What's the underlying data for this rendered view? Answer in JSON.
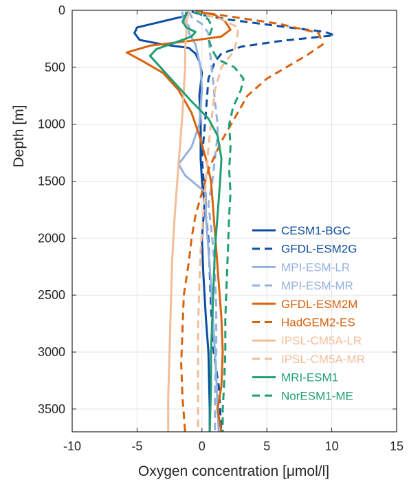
{
  "chart_data": {
    "type": "line",
    "xlabel": "Oxygen concentration [μmol/l]",
    "ylabel": "Depth [m]",
    "xlim": [
      -10,
      15
    ],
    "ylim": [
      0,
      3700
    ],
    "y_reversed": true,
    "grid": true,
    "legend_position": "bottom-right",
    "x_ticks": [
      "-10",
      "-5",
      "0",
      "5",
      "10",
      "15"
    ],
    "y_ticks": [
      "0",
      "500",
      "1000",
      "1500",
      "2000",
      "2500",
      "3000",
      "3500"
    ],
    "x_tick_values": [
      -10,
      -5,
      0,
      5,
      10,
      15
    ],
    "y_tick_values": [
      0,
      500,
      1000,
      1500,
      2000,
      2500,
      3000,
      3500
    ],
    "series": [
      {
        "name": "CESM1-BGC",
        "color": "#0c4da2",
        "dash": "solid",
        "points": [
          [
            -1.0,
            10
          ],
          [
            -1.3,
            50
          ],
          [
            -3.5,
            110
          ],
          [
            -5.0,
            150
          ],
          [
            -5.2,
            200
          ],
          [
            -4.8,
            260
          ],
          [
            -3.0,
            300
          ],
          [
            -1.0,
            330
          ],
          [
            -0.5,
            380
          ],
          [
            -0.2,
            450
          ],
          [
            0.0,
            550
          ],
          [
            -0.2,
            750
          ],
          [
            -0.1,
            1000
          ],
          [
            -0.1,
            1300
          ],
          [
            0.0,
            1500
          ],
          [
            0.2,
            1700
          ],
          [
            0.0,
            2000
          ],
          [
            0.1,
            2300
          ],
          [
            0.3,
            2700
          ],
          [
            0.5,
            3000
          ],
          [
            0.6,
            3500
          ],
          [
            0.6,
            3700
          ]
        ]
      },
      {
        "name": "GFDL-ESM2G",
        "color": "#0c4da2",
        "dash": "dash",
        "points": [
          [
            -0.8,
            10
          ],
          [
            0.0,
            40
          ],
          [
            2.0,
            80
          ],
          [
            6.0,
            140
          ],
          [
            9.5,
            190
          ],
          [
            10.2,
            220
          ],
          [
            6.0,
            270
          ],
          [
            3.0,
            320
          ],
          [
            1.5,
            380
          ],
          [
            1.0,
            450
          ],
          [
            0.5,
            600
          ],
          [
            0.3,
            900
          ],
          [
            0.0,
            1300
          ],
          [
            0.2,
            1600
          ],
          [
            0.3,
            1800
          ],
          [
            0.5,
            2000
          ],
          [
            0.6,
            2300
          ],
          [
            0.7,
            2600
          ],
          [
            0.9,
            3000
          ],
          [
            1.3,
            3300
          ],
          [
            1.4,
            3500
          ],
          [
            1.5,
            3700
          ]
        ]
      },
      {
        "name": "MPI-ESM-LR",
        "color": "#95b1de",
        "dash": "solid",
        "points": [
          [
            -1.5,
            10
          ],
          [
            -1.5,
            60
          ],
          [
            -1.3,
            100
          ],
          [
            -1.0,
            140
          ],
          [
            -1.0,
            200
          ],
          [
            -0.5,
            300
          ],
          [
            -0.3,
            400
          ],
          [
            -0.1,
            500
          ],
          [
            0.0,
            700
          ],
          [
            -0.2,
            1000
          ],
          [
            -0.8,
            1200
          ],
          [
            -1.8,
            1350
          ],
          [
            -1.3,
            1450
          ],
          [
            0.3,
            1600
          ],
          [
            0.3,
            1800
          ],
          [
            0.5,
            2100
          ],
          [
            0.7,
            2400
          ],
          [
            0.9,
            2800
          ],
          [
            1.1,
            3200
          ],
          [
            1.2,
            3500
          ],
          [
            1.3,
            3700
          ]
        ]
      },
      {
        "name": "MPI-ESM-MR",
        "color": "#95b1de",
        "dash": "dash",
        "points": [
          [
            -1.0,
            10
          ],
          [
            -0.8,
            60
          ],
          [
            0.0,
            120
          ],
          [
            0.5,
            200
          ],
          [
            0.6,
            350
          ],
          [
            0.8,
            550
          ],
          [
            1.0,
            800
          ],
          [
            1.2,
            1000
          ],
          [
            1.2,
            1100
          ],
          [
            1.0,
            1300
          ],
          [
            0.8,
            1500
          ],
          [
            0.5,
            1700
          ],
          [
            0.8,
            2000
          ],
          [
            1.0,
            2300
          ],
          [
            1.1,
            2600
          ],
          [
            1.1,
            3000
          ],
          [
            1.0,
            3300
          ],
          [
            1.0,
            3700
          ]
        ]
      },
      {
        "name": "GFDL-ESM2M",
        "color": "#d9620d",
        "dash": "solid",
        "points": [
          [
            -0.3,
            10
          ],
          [
            1.0,
            40
          ],
          [
            1.8,
            100
          ],
          [
            2.2,
            170
          ],
          [
            1.5,
            230
          ],
          [
            -1.0,
            270
          ],
          [
            -4.0,
            310
          ],
          [
            -5.8,
            370
          ],
          [
            -4.5,
            450
          ],
          [
            -3.0,
            550
          ],
          [
            -1.8,
            700
          ],
          [
            -0.8,
            900
          ],
          [
            -0.2,
            1100
          ],
          [
            0.3,
            1300
          ],
          [
            0.7,
            1500
          ],
          [
            0.9,
            1800
          ],
          [
            1.1,
            2100
          ],
          [
            1.3,
            2400
          ],
          [
            1.5,
            2700
          ],
          [
            1.6,
            3000
          ],
          [
            1.5,
            3300
          ],
          [
            1.2,
            3500
          ],
          [
            1.5,
            3700
          ]
        ]
      },
      {
        "name": "HadGEM2-ES",
        "color": "#d9620d",
        "dash": "dash",
        "points": [
          [
            -0.5,
            10
          ],
          [
            2.5,
            60
          ],
          [
            6.0,
            120
          ],
          [
            9.0,
            200
          ],
          [
            9.3,
            300
          ],
          [
            8.0,
            400
          ],
          [
            6.5,
            500
          ],
          [
            5.0,
            600
          ],
          [
            3.5,
            750
          ],
          [
            2.5,
            950
          ],
          [
            1.5,
            1150
          ],
          [
            0.5,
            1400
          ],
          [
            0.0,
            1600
          ],
          [
            -0.5,
            1800
          ],
          [
            -0.8,
            2000
          ],
          [
            -1.0,
            2200
          ],
          [
            -1.4,
            2500
          ],
          [
            -1.5,
            2800
          ],
          [
            -1.6,
            3100
          ],
          [
            -1.5,
            3400
          ],
          [
            -1.3,
            3700
          ]
        ]
      },
      {
        "name": "IPSL-CM5A-LR",
        "color": "#f2bd99",
        "dash": "solid",
        "points": [
          [
            -1.0,
            10
          ],
          [
            -1.2,
            100
          ],
          [
            -1.2,
            200
          ],
          [
            -1.3,
            350
          ],
          [
            -1.3,
            500
          ],
          [
            -1.4,
            700
          ],
          [
            -1.5,
            900
          ],
          [
            -1.7,
            1200
          ],
          [
            -1.9,
            1500
          ],
          [
            -2.1,
            1800
          ],
          [
            -2.3,
            2200
          ],
          [
            -2.4,
            2600
          ],
          [
            -2.5,
            3000
          ],
          [
            -2.6,
            3400
          ],
          [
            -2.6,
            3700
          ]
        ]
      },
      {
        "name": "IPSL-CM5A-MR",
        "color": "#f2bd99",
        "dash": "dash",
        "points": [
          [
            -0.6,
            10
          ],
          [
            1.5,
            80
          ],
          [
            2.8,
            150
          ],
          [
            2.7,
            250
          ],
          [
            2.5,
            350
          ],
          [
            1.5,
            500
          ],
          [
            1.0,
            700
          ],
          [
            0.8,
            900
          ],
          [
            0.5,
            1200
          ],
          [
            0.3,
            1500
          ],
          [
            0.1,
            1800
          ],
          [
            -0.1,
            2100
          ],
          [
            -0.2,
            2400
          ],
          [
            -0.3,
            2800
          ],
          [
            -0.3,
            3200
          ],
          [
            -0.3,
            3700
          ]
        ]
      },
      {
        "name": "MRI-ESM1",
        "color": "#1f9e74",
        "dash": "solid",
        "points": [
          [
            -1.2,
            10
          ],
          [
            -1.3,
            60
          ],
          [
            -1.5,
            100
          ],
          [
            -1.2,
            150
          ],
          [
            -0.5,
            190
          ],
          [
            -0.8,
            230
          ],
          [
            -2.0,
            280
          ],
          [
            -3.5,
            340
          ],
          [
            -4.0,
            400
          ],
          [
            -3.2,
            500
          ],
          [
            -2.0,
            650
          ],
          [
            -0.8,
            800
          ],
          [
            0.5,
            950
          ],
          [
            1.2,
            1100
          ],
          [
            1.5,
            1300
          ],
          [
            1.4,
            1500
          ],
          [
            1.2,
            1800
          ],
          [
            1.0,
            2100
          ],
          [
            0.9,
            2400
          ],
          [
            0.8,
            2700
          ],
          [
            0.7,
            3000
          ],
          [
            0.7,
            3300
          ],
          [
            0.6,
            3700
          ]
        ]
      },
      {
        "name": "NorESM1-ME",
        "color": "#1f9e74",
        "dash": "dash",
        "points": [
          [
            -0.5,
            10
          ],
          [
            0.5,
            80
          ],
          [
            0.8,
            150
          ],
          [
            0.5,
            250
          ],
          [
            0.8,
            350
          ],
          [
            1.2,
            430
          ],
          [
            2.5,
            500
          ],
          [
            3.2,
            600
          ],
          [
            3.0,
            700
          ],
          [
            2.4,
            850
          ],
          [
            2.1,
            1000
          ],
          [
            2.2,
            1200
          ],
          [
            2.1,
            1400
          ],
          [
            2.2,
            1600
          ],
          [
            2.1,
            1800
          ],
          [
            2.0,
            2100
          ],
          [
            1.9,
            2400
          ],
          [
            1.8,
            2700
          ],
          [
            1.8,
            3000
          ],
          [
            1.7,
            3300
          ],
          [
            1.6,
            3500
          ],
          [
            1.6,
            3700
          ]
        ]
      }
    ]
  }
}
